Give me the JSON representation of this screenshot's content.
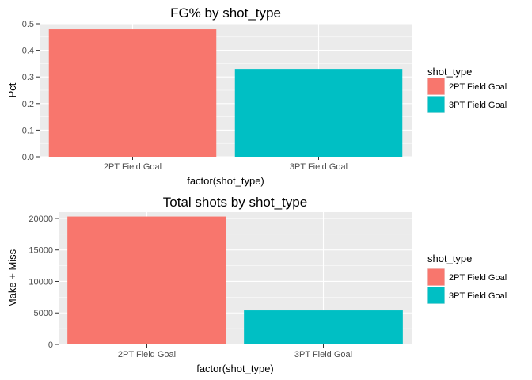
{
  "chart_data": [
    {
      "type": "bar",
      "title": "FG% by shot_type",
      "xlabel": "factor(shot_type)",
      "ylabel": "Pct",
      "categories": [
        "2PT Field Goal",
        "3PT Field Goal"
      ],
      "values": [
        0.479,
        0.33
      ],
      "ylim": [
        0,
        0.5
      ],
      "yticks": [
        "0.0",
        "0.1",
        "0.2",
        "0.3",
        "0.4",
        "0.5"
      ],
      "ytick_values": [
        0,
        0.1,
        0.2,
        0.3,
        0.4,
        0.5
      ],
      "grid": true,
      "legend": {
        "title": "shot_type",
        "placement": "right",
        "items": [
          "2PT Field Goal",
          "3PT Field Goal"
        ]
      }
    },
    {
      "type": "bar",
      "title": "Total shots by shot_type",
      "xlabel": "factor(shot_type)",
      "ylabel": "Make + Miss",
      "categories": [
        "2PT Field Goal",
        "3PT Field Goal"
      ],
      "values": [
        20300,
        5400
      ],
      "ylim": [
        0,
        21000
      ],
      "yticks": [
        "0",
        "5000",
        "10000",
        "15000",
        "20000"
      ],
      "ytick_values": [
        0,
        5000,
        10000,
        15000,
        20000
      ],
      "grid": true,
      "legend": {
        "title": "shot_type",
        "placement": "right",
        "items": [
          "2PT Field Goal",
          "3PT Field Goal"
        ]
      }
    }
  ],
  "colors": {
    "series": [
      "#F8766D",
      "#00BFC4"
    ],
    "panel_bg": "#EBEBEB",
    "grid": "#FFFFFF"
  }
}
